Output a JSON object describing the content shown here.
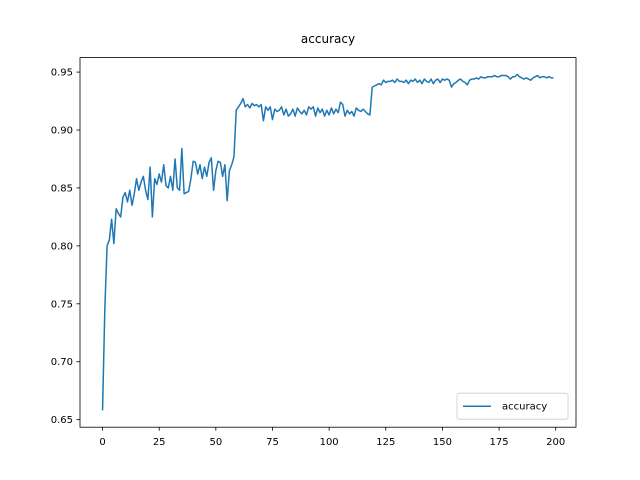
{
  "chart_data": {
    "type": "line",
    "title": "accuracy",
    "x": [
      0,
      1,
      2,
      3,
      4,
      5,
      6,
      7,
      8,
      9,
      10,
      11,
      12,
      13,
      14,
      15,
      16,
      17,
      18,
      19,
      20,
      21,
      22,
      23,
      24,
      25,
      26,
      27,
      28,
      29,
      30,
      31,
      32,
      33,
      34,
      35,
      36,
      37,
      38,
      39,
      40,
      41,
      42,
      43,
      44,
      45,
      46,
      47,
      48,
      49,
      50,
      51,
      52,
      53,
      54,
      55,
      56,
      57,
      58,
      59,
      60,
      61,
      62,
      63,
      64,
      65,
      66,
      67,
      68,
      69,
      70,
      71,
      72,
      73,
      74,
      75,
      76,
      77,
      78,
      79,
      80,
      81,
      82,
      83,
      84,
      85,
      86,
      87,
      88,
      89,
      90,
      91,
      92,
      93,
      94,
      95,
      96,
      97,
      98,
      99,
      100,
      101,
      102,
      103,
      104,
      105,
      106,
      107,
      108,
      109,
      110,
      111,
      112,
      113,
      114,
      115,
      116,
      117,
      118,
      119,
      120,
      121,
      122,
      123,
      124,
      125,
      126,
      127,
      128,
      129,
      130,
      131,
      132,
      133,
      134,
      135,
      136,
      137,
      138,
      139,
      140,
      141,
      142,
      143,
      144,
      145,
      146,
      147,
      148,
      149,
      150,
      151,
      152,
      153,
      154,
      155,
      156,
      157,
      158,
      159,
      160,
      161,
      162,
      163,
      164,
      165,
      166,
      167,
      168,
      169,
      170,
      171,
      172,
      173,
      174,
      175,
      176,
      177,
      178,
      179,
      180,
      181,
      182,
      183,
      184,
      185,
      186,
      187,
      188,
      189,
      190,
      191,
      192,
      193,
      194,
      195,
      196,
      197,
      198,
      199
    ],
    "series": [
      {
        "name": "accuracy",
        "color": "#1f77b4",
        "values": [
          0.658,
          0.745,
          0.8,
          0.805,
          0.823,
          0.802,
          0.832,
          0.828,
          0.825,
          0.842,
          0.846,
          0.838,
          0.848,
          0.835,
          0.845,
          0.858,
          0.848,
          0.855,
          0.86,
          0.848,
          0.84,
          0.868,
          0.825,
          0.858,
          0.853,
          0.862,
          0.855,
          0.87,
          0.852,
          0.85,
          0.86,
          0.848,
          0.875,
          0.85,
          0.848,
          0.884,
          0.845,
          0.846,
          0.847,
          0.858,
          0.873,
          0.872,
          0.862,
          0.87,
          0.858,
          0.868,
          0.86,
          0.872,
          0.876,
          0.848,
          0.865,
          0.873,
          0.872,
          0.86,
          0.87,
          0.839,
          0.865,
          0.87,
          0.877,
          0.917,
          0.92,
          0.923,
          0.927,
          0.92,
          0.922,
          0.919,
          0.923,
          0.921,
          0.922,
          0.92,
          0.922,
          0.908,
          0.92,
          0.917,
          0.92,
          0.909,
          0.918,
          0.916,
          0.917,
          0.92,
          0.913,
          0.918,
          0.912,
          0.914,
          0.918,
          0.912,
          0.919,
          0.916,
          0.914,
          0.917,
          0.913,
          0.92,
          0.918,
          0.92,
          0.912,
          0.919,
          0.915,
          0.918,
          0.912,
          0.917,
          0.913,
          0.919,
          0.914,
          0.918,
          0.915,
          0.924,
          0.922,
          0.912,
          0.917,
          0.914,
          0.916,
          0.912,
          0.919,
          0.917,
          0.916,
          0.918,
          0.916,
          0.914,
          0.913,
          0.937,
          0.938,
          0.939,
          0.94,
          0.939,
          0.943,
          0.941,
          0.942,
          0.942,
          0.943,
          0.941,
          0.944,
          0.942,
          0.942,
          0.941,
          0.943,
          0.94,
          0.943,
          0.942,
          0.944,
          0.941,
          0.943,
          0.94,
          0.944,
          0.942,
          0.941,
          0.944,
          0.94,
          0.943,
          0.944,
          0.941,
          0.944,
          0.943,
          0.944,
          0.943,
          0.937,
          0.94,
          0.941,
          0.943,
          0.944,
          0.942,
          0.941,
          0.939,
          0.943,
          0.944,
          0.944,
          0.945,
          0.944,
          0.946,
          0.945,
          0.945,
          0.946,
          0.946,
          0.946,
          0.947,
          0.946,
          0.946,
          0.947,
          0.947,
          0.947,
          0.946,
          0.944,
          0.946,
          0.946,
          0.948,
          0.946,
          0.945,
          0.944,
          0.945,
          0.944,
          0.943,
          0.945,
          0.946,
          0.947,
          0.945,
          0.946,
          0.946,
          0.945,
          0.946,
          0.945,
          0.945
        ]
      }
    ],
    "xlim": [
      -9.95,
      208.95
    ],
    "xticks": [
      0,
      25,
      50,
      75,
      100,
      125,
      150,
      175,
      200
    ],
    "ylim": [
      0.6435,
      0.9625
    ],
    "yticks": [
      {
        "value": 0.65,
        "label": "0.65"
      },
      {
        "value": 0.7,
        "label": "0.70"
      },
      {
        "value": 0.75,
        "label": "0.75"
      },
      {
        "value": 0.8,
        "label": "0.80"
      },
      {
        "value": 0.85,
        "label": "0.85"
      },
      {
        "value": 0.9,
        "label": "0.90"
      },
      {
        "value": 0.95,
        "label": "0.95"
      }
    ],
    "grid": false,
    "legend": "lower right"
  }
}
